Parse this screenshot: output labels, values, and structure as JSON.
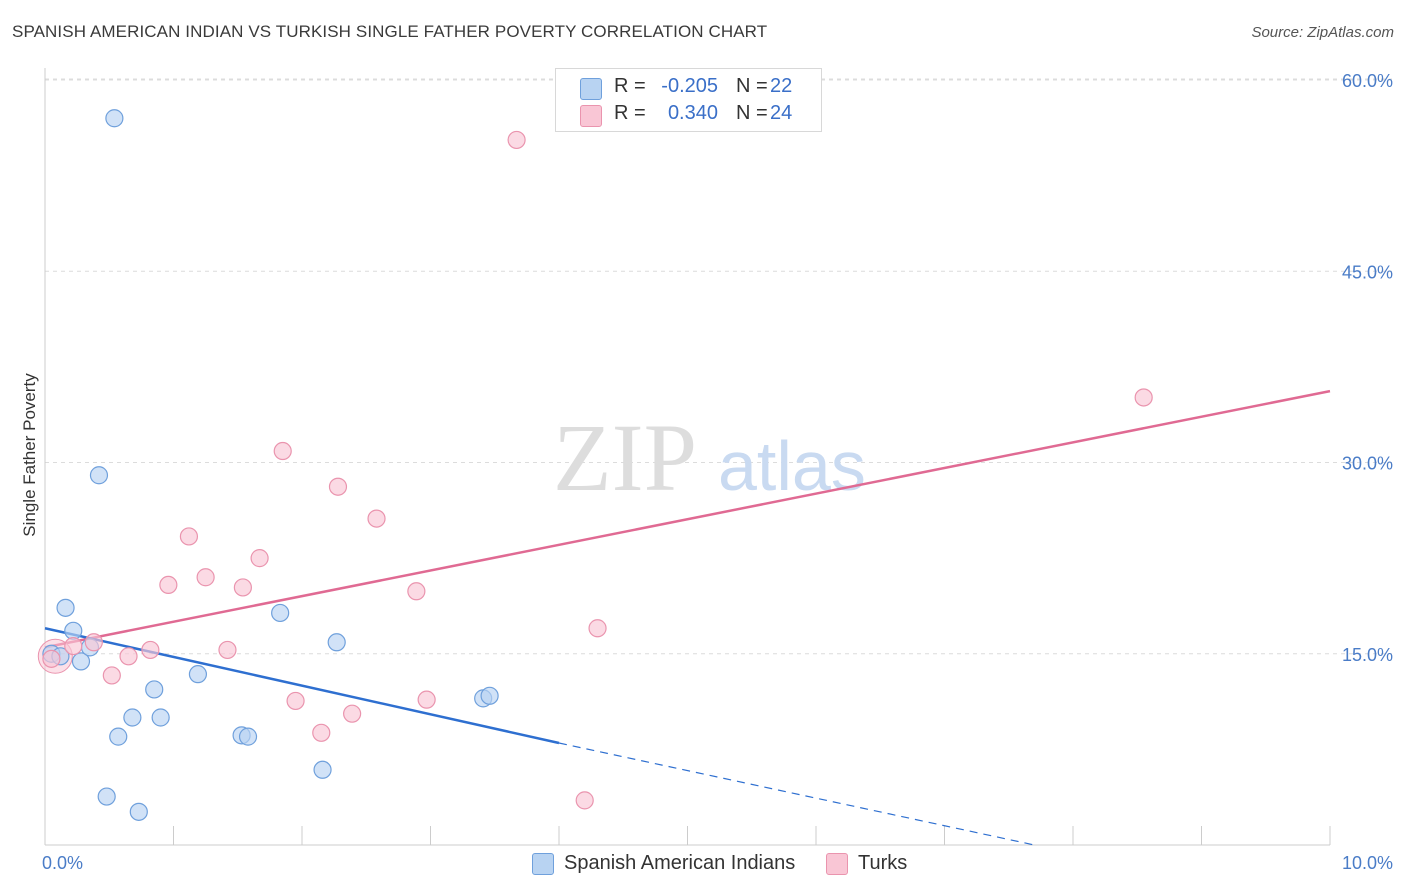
{
  "header": {
    "title": "SPANISH AMERICAN INDIAN VS TURKISH SINGLE FATHER POVERTY CORRELATION CHART",
    "source": "Source: ZipAtlas.com"
  },
  "legend": {
    "rows": [
      {
        "r_label": "R =",
        "r_value": "-0.205",
        "n_label": "N =",
        "n_value": "22"
      },
      {
        "r_label": "R =",
        "r_value": "0.340",
        "n_label": "N =",
        "n_value": "24"
      }
    ]
  },
  "colors": {
    "blue_fill": "#b8d3f2",
    "blue_stroke": "#6fa0dc",
    "blue_line": "#2e6fd0",
    "pink_fill": "#f9c6d5",
    "pink_stroke": "#ea94ae",
    "pink_line": "#e06a93",
    "tick_text": "#4a7cc7"
  },
  "watermark": {
    "zip": "ZIP",
    "atlas": "atlas"
  },
  "chart_data": {
    "type": "scatter",
    "title": "SPANISH AMERICAN INDIAN VS TURKISH SINGLE FATHER POVERTY CORRELATION CHART",
    "xlabel": "",
    "ylabel": "Single Father Poverty",
    "xlim": [
      0,
      10
    ],
    "ylim": [
      0,
      62
    ],
    "x_ticks": [
      0,
      10
    ],
    "x_tick_labels": [
      "0.0%",
      "10.0%"
    ],
    "y_ticks": [
      15,
      30,
      45,
      60
    ],
    "y_tick_labels": [
      "15.0%",
      "30.0%",
      "45.0%",
      "60.0%"
    ],
    "grid": true,
    "legend_position": "top-center",
    "series": [
      {
        "name": "Spanish American Indians",
        "color": "#6fa0dc",
        "points": [
          [
            0.05,
            15.0
          ],
          [
            0.12,
            14.8
          ],
          [
            0.16,
            18.6
          ],
          [
            0.22,
            16.8
          ],
          [
            0.28,
            14.4
          ],
          [
            0.35,
            15.5
          ],
          [
            0.42,
            29.0
          ],
          [
            0.54,
            57.0
          ],
          [
            0.48,
            3.8
          ],
          [
            0.57,
            8.5
          ],
          [
            0.68,
            10.0
          ],
          [
            0.73,
            2.6
          ],
          [
            0.85,
            12.2
          ],
          [
            0.9,
            10.0
          ],
          [
            1.19,
            13.4
          ],
          [
            1.53,
            8.6
          ],
          [
            1.58,
            8.5
          ],
          [
            1.83,
            18.2
          ],
          [
            2.16,
            5.9
          ],
          [
            2.27,
            15.9
          ],
          [
            3.41,
            11.5
          ],
          [
            3.46,
            11.7
          ]
        ],
        "trend": {
          "x0": 0.0,
          "y0": 17.0,
          "x1": 4.0,
          "y1": 8.0,
          "dash_to_x": 7.7,
          "dash_to_y": 0.0
        }
      },
      {
        "name": "Turks",
        "color": "#ea94ae",
        "points": [
          [
            0.05,
            14.6
          ],
          [
            0.22,
            15.6
          ],
          [
            0.38,
            15.9
          ],
          [
            0.52,
            13.3
          ],
          [
            0.65,
            14.8
          ],
          [
            0.82,
            15.3
          ],
          [
            0.96,
            20.4
          ],
          [
            1.12,
            24.2
          ],
          [
            1.25,
            21.0
          ],
          [
            1.42,
            15.3
          ],
          [
            1.54,
            20.2
          ],
          [
            1.67,
            22.5
          ],
          [
            1.85,
            30.9
          ],
          [
            1.95,
            11.3
          ],
          [
            2.15,
            8.8
          ],
          [
            2.28,
            28.1
          ],
          [
            2.39,
            10.3
          ],
          [
            2.58,
            25.6
          ],
          [
            2.89,
            19.9
          ],
          [
            2.97,
            11.4
          ],
          [
            3.67,
            55.3
          ],
          [
            4.2,
            3.5
          ],
          [
            4.3,
            17.0
          ],
          [
            8.55,
            35.1
          ]
        ],
        "trend": {
          "x0": 0.0,
          "y0": 15.5,
          "x1": 10.0,
          "y1": 35.6
        }
      }
    ]
  },
  "bottom_legend": [
    {
      "label": "Spanish American Indians"
    },
    {
      "label": "Turks"
    }
  ]
}
